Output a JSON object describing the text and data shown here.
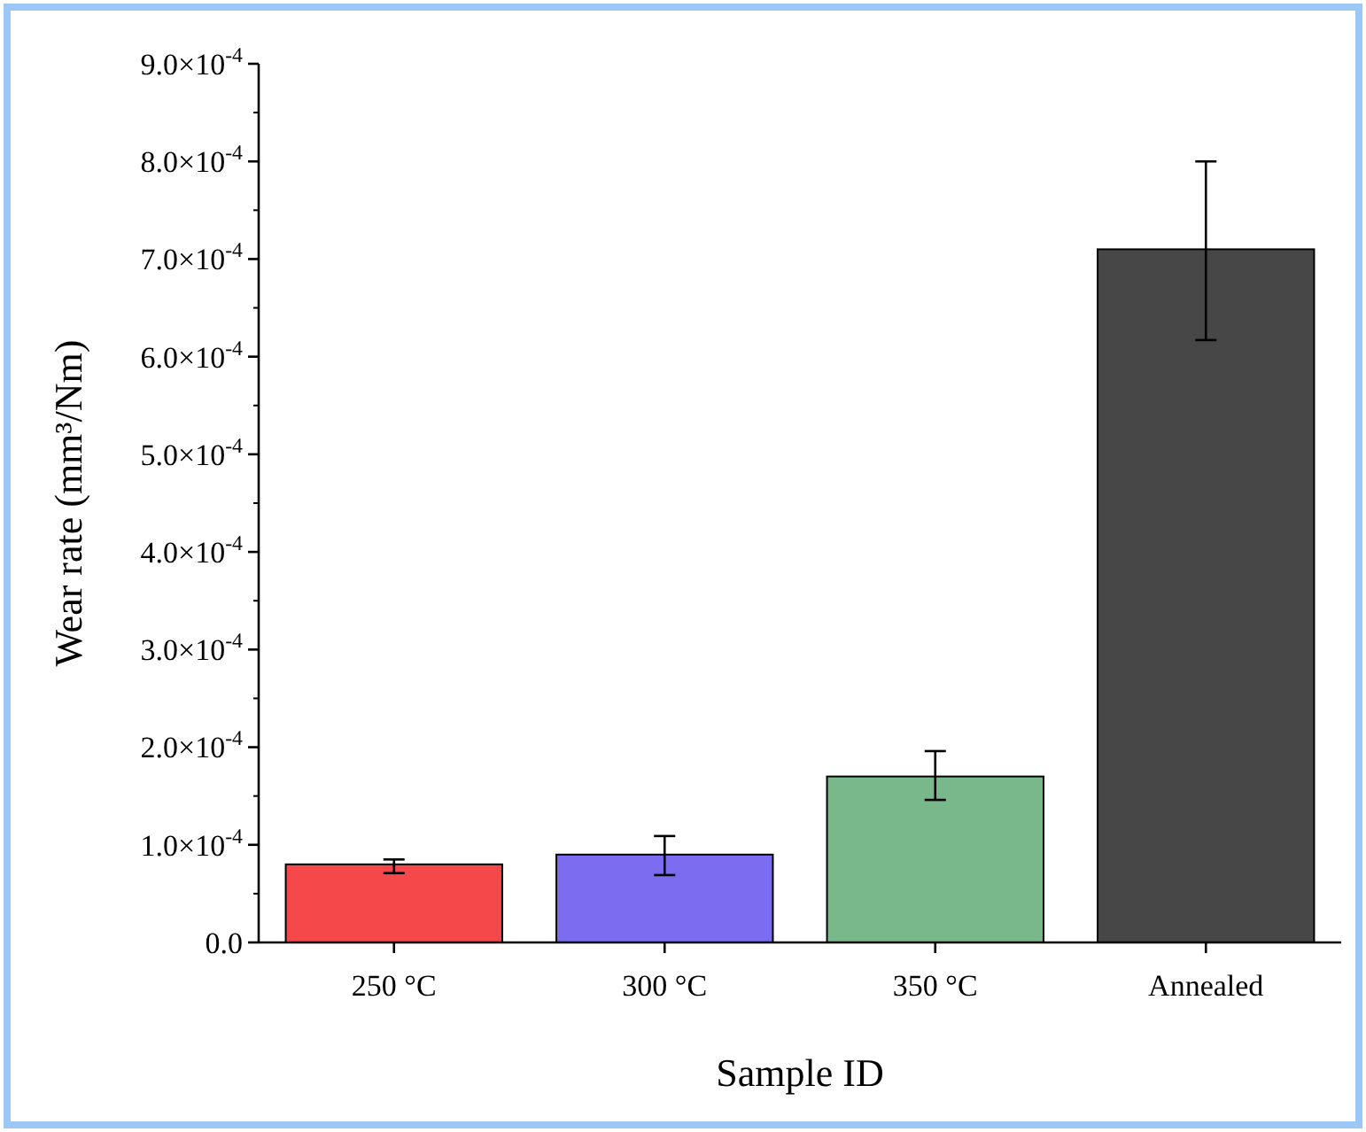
{
  "chart_data": {
    "type": "bar",
    "xlabel": "Sample ID",
    "ylabel": "Wear rate (mm³/Nm)",
    "categories": [
      "250 °C",
      "300 °C",
      "350 °C",
      "Annealed"
    ],
    "values": [
      8e-05,
      9e-05,
      0.00017,
      0.00071
    ],
    "colors": [
      "#f5484a",
      "#7b6cf0",
      "#79b88a",
      "#474747"
    ],
    "errors": [
      [
        7.1e-05,
        8.5e-05
      ],
      [
        6.9e-05,
        0.000109
      ],
      [
        0.000146,
        0.000196
      ],
      [
        0.000617,
        0.0008
      ]
    ],
    "ylim": [
      0,
      0.0009
    ],
    "yticks": [
      {
        "value": 0,
        "label": "0.0"
      },
      {
        "value": 0.0001,
        "label": "1.0×10$^{-4}$"
      },
      {
        "value": 0.0002,
        "label": "2.0×10$^{-4}$"
      },
      {
        "value": 0.0003,
        "label": "3.0×10$^{-4}$"
      },
      {
        "value": 0.0004,
        "label": "4.0×10$^{-4}$"
      },
      {
        "value": 0.0005,
        "label": "5.0×10$^{-4}$"
      },
      {
        "value": 0.0006,
        "label": "6.0×10$^{-4}$"
      },
      {
        "value": 0.0007,
        "label": "7.0×10$^{-4}$"
      },
      {
        "value": 0.0008,
        "label": "8.0×10$^{-4}$"
      },
      {
        "value": 0.0009,
        "label": "9.0×10$^{-4}$"
      }
    ],
    "grid": false
  }
}
